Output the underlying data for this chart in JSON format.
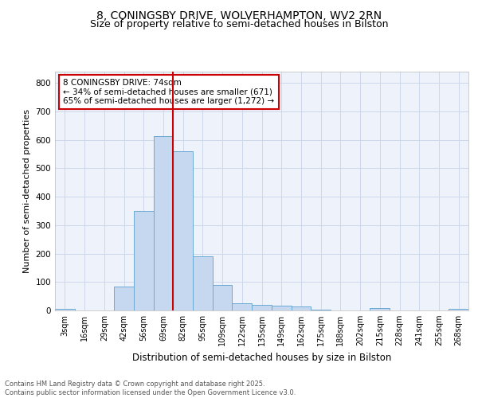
{
  "title_line1": "8, CONINGSBY DRIVE, WOLVERHAMPTON, WV2 2RN",
  "title_line2": "Size of property relative to semi-detached houses in Bilston",
  "xlabel": "Distribution of semi-detached houses by size in Bilston",
  "ylabel": "Number of semi-detached properties",
  "bar_labels": [
    "3sqm",
    "16sqm",
    "29sqm",
    "42sqm",
    "56sqm",
    "69sqm",
    "82sqm",
    "95sqm",
    "109sqm",
    "122sqm",
    "135sqm",
    "149sqm",
    "162sqm",
    "175sqm",
    "188sqm",
    "202sqm",
    "215sqm",
    "228sqm",
    "241sqm",
    "255sqm",
    "268sqm"
  ],
  "bar_values": [
    5,
    0,
    0,
    85,
    350,
    612,
    560,
    190,
    90,
    25,
    20,
    17,
    13,
    3,
    0,
    0,
    8,
    0,
    0,
    0,
    5
  ],
  "bar_color": "#c5d8f0",
  "bar_edge_color": "#6aaad4",
  "vline_x": 5.5,
  "vline_color": "#cc0000",
  "annotation_text": "8 CONINGSBY DRIVE: 74sqm\n← 34% of semi-detached houses are smaller (671)\n65% of semi-detached houses are larger (1,272) →",
  "annotation_box_edge": "#cc0000",
  "ylim": [
    0,
    840
  ],
  "yticks": [
    0,
    100,
    200,
    300,
    400,
    500,
    600,
    700,
    800
  ],
  "grid_color": "#cdd8ea",
  "background_color": "#eef2fa",
  "footer_text": "Contains HM Land Registry data © Crown copyright and database right 2025.\nContains public sector information licensed under the Open Government Licence v3.0.",
  "title_fontsize": 10,
  "subtitle_fontsize": 9,
  "tick_fontsize": 7,
  "ylabel_fontsize": 8,
  "xlabel_fontsize": 8.5,
  "annotation_fontsize": 7.5,
  "footer_fontsize": 6
}
